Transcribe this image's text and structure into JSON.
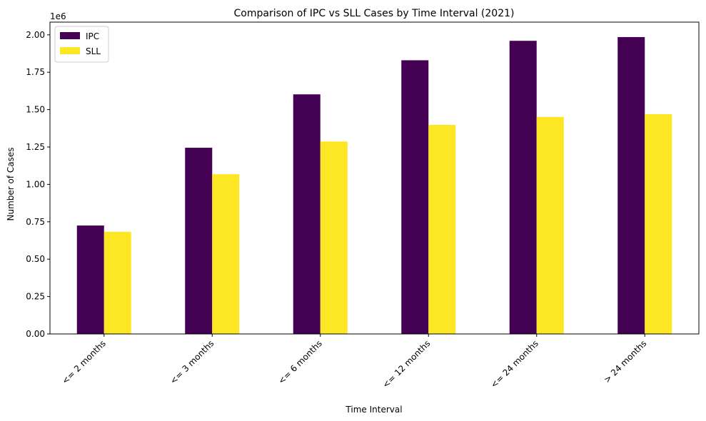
{
  "chart_data": {
    "type": "bar",
    "title": "Comparison of IPC vs SLL Cases by Time Interval (2021)",
    "xlabel": "Time Interval",
    "ylabel": "Number of Cases",
    "y_offset_label": "1e6",
    "categories": [
      "<= 2 months",
      "<= 3 months",
      "<= 6 months",
      "<= 12 months",
      "<= 24 months",
      "> 24 months"
    ],
    "series": [
      {
        "name": "IPC",
        "color": "#440154",
        "values": [
          725000,
          1245000,
          1602000,
          1830000,
          1960000,
          1985000
        ]
      },
      {
        "name": "SLL",
        "color": "#fde725",
        "values": [
          683000,
          1068000,
          1287000,
          1398000,
          1451000,
          1470000
        ]
      }
    ],
    "ylim": [
      0,
      2085000
    ],
    "yticks": [
      0,
      250000,
      500000,
      750000,
      1000000,
      1250000,
      1500000,
      1750000,
      2000000
    ],
    "ytick_labels": [
      "0.00",
      "0.25",
      "0.50",
      "0.75",
      "1.00",
      "1.25",
      "1.50",
      "1.75",
      "2.00"
    ],
    "legend_position": "top-left",
    "grid": false
  }
}
